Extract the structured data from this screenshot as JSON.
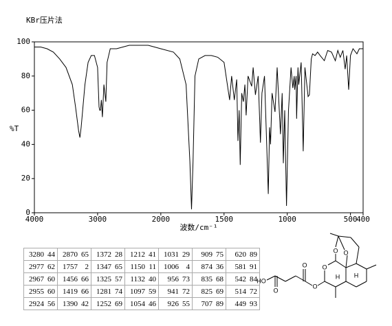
{
  "chart_data": {
    "type": "line",
    "title": "KBr压片法",
    "ylabel": "%T",
    "xlabel": "波数/cm⁻¹",
    "color": "#000000",
    "xlim": [
      4000,
      400
    ],
    "x_scale_break": 2000,
    "xticks": [
      4000,
      3000,
      2000,
      1500,
      1000,
      500,
      400
    ],
    "ylim": [
      0,
      100
    ],
    "yticks": [
      0,
      20,
      40,
      60,
      80,
      100
    ],
    "x": [
      4000,
      3900,
      3800,
      3700,
      3600,
      3500,
      3400,
      3350,
      3300,
      3280,
      3260,
      3200,
      3150,
      3100,
      3050,
      3000,
      2977,
      2967,
      2955,
      2940,
      2924,
      2900,
      2870,
      2850,
      2800,
      2700,
      2600,
      2500,
      2400,
      2300,
      2200,
      2100,
      2000,
      1900,
      1850,
      1800,
      1770,
      1757,
      1745,
      1730,
      1700,
      1650,
      1600,
      1550,
      1500,
      1456,
      1440,
      1419,
      1400,
      1390,
      1380,
      1372,
      1360,
      1347,
      1335,
      1325,
      1310,
      1281,
      1270,
      1252,
      1230,
      1212,
      1200,
      1180,
      1150,
      1140,
      1132,
      1120,
      1097,
      1080,
      1054,
      1040,
      1031,
      1020,
      1006,
      990,
      970,
      956,
      945,
      941,
      930,
      926,
      915,
      909,
      890,
      874,
      860,
      835,
      825,
      810,
      800,
      780,
      760,
      740,
      707,
      680,
      650,
      620,
      600,
      581,
      560,
      542,
      530,
      514,
      500,
      480,
      449,
      430,
      400
    ],
    "values": [
      97,
      97,
      96,
      94,
      90,
      85,
      75,
      62,
      48,
      44,
      50,
      75,
      88,
      92,
      92,
      85,
      62,
      60,
      60,
      66,
      56,
      75,
      65,
      88,
      96,
      96,
      97,
      98,
      98,
      98,
      98,
      97,
      96,
      94,
      90,
      75,
      30,
      2,
      30,
      80,
      90,
      92,
      92,
      91,
      88,
      66,
      80,
      66,
      78,
      42,
      60,
      28,
      70,
      65,
      75,
      57,
      80,
      74,
      85,
      69,
      80,
      41,
      70,
      80,
      11,
      50,
      40,
      70,
      59,
      85,
      46,
      70,
      29,
      60,
      4,
      60,
      85,
      73,
      80,
      72,
      80,
      55,
      85,
      75,
      88,
      36,
      85,
      68,
      69,
      90,
      93,
      92,
      94,
      92,
      89,
      95,
      94,
      89,
      95,
      91,
      95,
      84,
      92,
      72,
      92,
      96,
      93,
      96,
      96
    ]
  },
  "peak_table": {
    "rows": [
      [
        [
          3280,
          44
        ],
        [
          2870,
          65
        ],
        [
          1372,
          28
        ],
        [
          1212,
          41
        ],
        [
          1031,
          29
        ],
        [
          909,
          75
        ],
        [
          620,
          89
        ]
      ],
      [
        [
          2977,
          62
        ],
        [
          1757,
          2
        ],
        [
          1347,
          65
        ],
        [
          1150,
          11
        ],
        [
          1006,
          4
        ],
        [
          874,
          36
        ],
        [
          581,
          91
        ]
      ],
      [
        [
          2967,
          60
        ],
        [
          1456,
          66
        ],
        [
          1325,
          57
        ],
        [
          1132,
          40
        ],
        [
          956,
          73
        ],
        [
          835,
          68
        ],
        [
          542,
          84
        ]
      ],
      [
        [
          2955,
          60
        ],
        [
          1419,
          66
        ],
        [
          1281,
          74
        ],
        [
          1097,
          59
        ],
        [
          941,
          72
        ],
        [
          825,
          69
        ],
        [
          514,
          72
        ]
      ],
      [
        [
          2924,
          56
        ],
        [
          1390,
          42
        ],
        [
          1252,
          69
        ],
        [
          1054,
          46
        ],
        [
          926,
          55
        ],
        [
          707,
          89
        ],
        [
          449,
          93
        ]
      ]
    ]
  },
  "structure": {
    "labels": [
      "HO",
      "O",
      "O",
      "O",
      "O",
      "O",
      "O",
      "H",
      "H"
    ]
  }
}
